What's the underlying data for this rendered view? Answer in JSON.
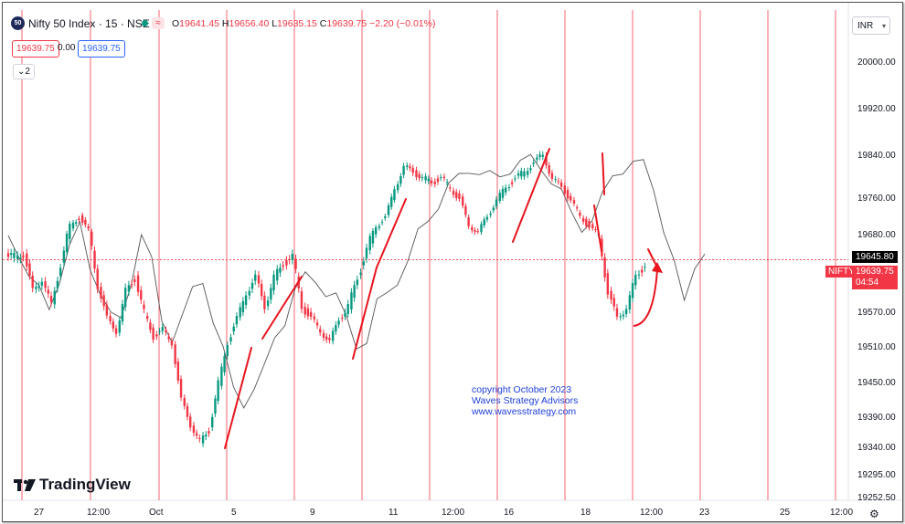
{
  "header": {
    "logo_text": "50",
    "symbol": "Nifty 50 Index · 15 · NSE",
    "wave_icon": "≈",
    "ohlc": [
      {
        "key": "O",
        "value": "19641.45"
      },
      {
        "key": "H",
        "value": "19656.40"
      },
      {
        "key": "L",
        "value": "19635.15"
      },
      {
        "key": "C",
        "value": "19639.75"
      },
      {
        "key": "",
        "value": "−2.20 (−0.01%)"
      }
    ],
    "sell_price": "19639.75",
    "spread": "0.00",
    "buy_price": "19639.75",
    "collapse_label": "2",
    "currency": "INR",
    "currency_icon": "chevron-down-icon"
  },
  "chart_data": {
    "type": "candlestick",
    "y_ticks": [
      "20000.00",
      "19920.00",
      "19840.00",
      "19760.00",
      "19680.00",
      "19570.00",
      "19510.00",
      "19450.00",
      "19390.00",
      "19340.00",
      "19295.00",
      "19252.50"
    ],
    "x_ticks": [
      "27",
      "12:00",
      "Oct",
      "5",
      "9",
      "11",
      "12:00",
      "16",
      "18",
      "12:00",
      "23",
      "25",
      "12:00"
    ],
    "price_tags": [
      {
        "label": "",
        "value": "19645.80",
        "color": "#000000"
      },
      {
        "label": "NIFTY",
        "value": "19639.75",
        "sub": "04:54",
        "color": "#f23645"
      }
    ],
    "ohlc_series_close": [
      19650,
      19655,
      19600,
      19620,
      19580,
      19640,
      19700,
      19720,
      19690,
      19610,
      19560,
      19540,
      19600,
      19620,
      19570,
      19530,
      19540,
      19520,
      19420,
      19380,
      19350,
      19370,
      19450,
      19520,
      19560,
      19600,
      19620,
      19580,
      19620,
      19640,
      19650,
      19580,
      19560,
      19540,
      19520,
      19560,
      19580,
      19620,
      19660,
      19700,
      19720,
      19780,
      19820,
      19810,
      19800,
      19790,
      19800,
      19780,
      19760,
      19700,
      19690,
      19720,
      19760,
      19780,
      19800,
      19810,
      19830,
      19840,
      19800,
      19780,
      19760,
      19720,
      19700,
      19680,
      19600,
      19560,
      19580,
      19620,
      19640
    ],
    "overlay_line_values": [
      19680,
      19660,
      19620,
      19600,
      19580,
      19620,
      19660,
      19700,
      19640,
      19600,
      19560,
      19560,
      19620,
      19680,
      19640,
      19560,
      19530,
      19560,
      19600,
      19620,
      19560,
      19500,
      19440,
      19420,
      19440,
      19470,
      19530,
      19560,
      19600,
      19620,
      19620,
      19600,
      19590,
      19560,
      19520,
      19520,
      19580,
      19600,
      19620,
      19640,
      19680,
      19720,
      19750,
      19780,
      19800,
      19820,
      19810,
      19800,
      19800,
      19820,
      19830,
      19830,
      19820,
      19800,
      19770,
      19720,
      19700,
      19720,
      19760,
      19800,
      19820,
      19830,
      19820,
      19780,
      19700,
      19640,
      19580,
      19640,
      19660
    ],
    "watermark": [
      "copyright October 2023",
      "Waves Strategy Advisors",
      "www.wavesstrategy.com"
    ]
  },
  "branding": {
    "name": "TradingView"
  },
  "footer": {
    "settings_icon": "gear-icon"
  }
}
